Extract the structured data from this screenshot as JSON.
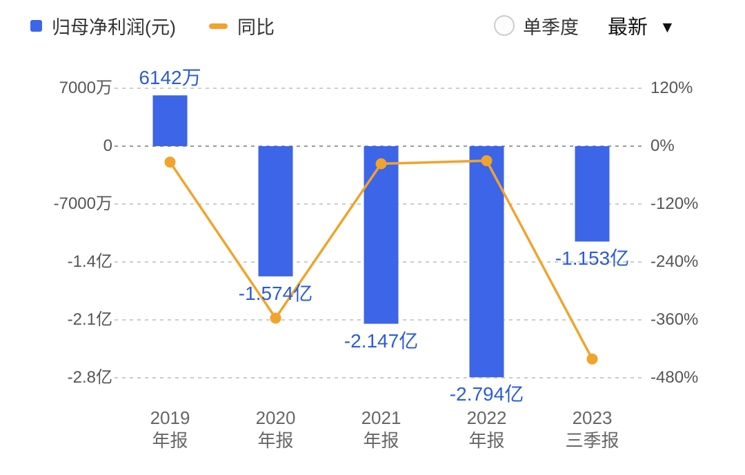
{
  "legend": {
    "bar_label": "归母净利润(元)",
    "line_label": "同比"
  },
  "controls": {
    "radio_label": "单季度",
    "dropdown_label": "最新",
    "dropdown_icon": "▼"
  },
  "colors": {
    "bar": "#3D65E8",
    "bar_value_text": "#2B5BD9",
    "line": "#F2A32B",
    "axis_text": "#555555",
    "x_tick_text": "#666666",
    "grid": "#cccccc",
    "zero_line": "#999999",
    "legend_text": "#333333",
    "background": "#ffffff"
  },
  "chart_data": {
    "type": "bar",
    "overlay_type": "line",
    "title": "",
    "legend_position": "top-left",
    "grid": "dashed-horizontal",
    "categories": [
      {
        "line1": "2019",
        "line2": "年报"
      },
      {
        "line1": "2020",
        "line2": "年报"
      },
      {
        "line1": "2021",
        "line2": "年报"
      },
      {
        "line1": "2022",
        "line2": "年报"
      },
      {
        "line1": "2023",
        "line2": "三季报"
      }
    ],
    "bars": {
      "name": "归母净利润(元)",
      "unit": "元",
      "values": [
        61420000,
        -157400000,
        -214700000,
        -279400000,
        -115300000
      ],
      "labels": [
        "6142万",
        "-1.574亿",
        "-2.147亿",
        "-2.794亿",
        "-1.153亿"
      ]
    },
    "line": {
      "name": "同比",
      "unit": "%",
      "values": [
        -33,
        -356.3,
        -36.4,
        -30.1,
        -441
      ]
    },
    "left_axis": {
      "ticks": [
        {
          "label": "7000万",
          "value": 70000000
        },
        {
          "label": "0",
          "value": 0
        },
        {
          "label": "-7000万",
          "value": -70000000
        },
        {
          "label": "-1.4亿",
          "value": -140000000
        },
        {
          "label": "-2.1亿",
          "value": -210000000
        },
        {
          "label": "-2.8亿",
          "value": -280000000
        }
      ]
    },
    "right_axis": {
      "ticks": [
        {
          "label": "120%",
          "value": 120
        },
        {
          "label": "0%",
          "value": 0
        },
        {
          "label": "-120%",
          "value": -120
        },
        {
          "label": "-240%",
          "value": -240
        },
        {
          "label": "-360%",
          "value": -360
        },
        {
          "label": "-480%",
          "value": -480
        }
      ]
    }
  }
}
